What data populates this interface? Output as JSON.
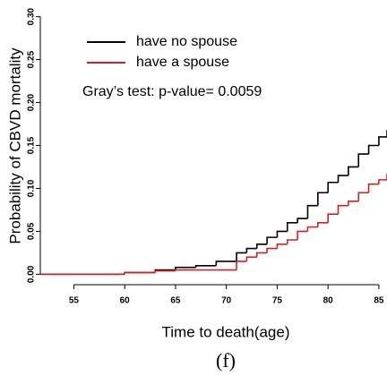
{
  "chart_data": {
    "type": "line",
    "step": "post",
    "ylabel": "Probability of CBVD mortality",
    "xlabel": "Time to death(age)",
    "caption": "(f)",
    "annotation": "Gray’s test: p-value= 0.0059",
    "legend": "top-left",
    "x": [
      51.7,
      60,
      63,
      65,
      67,
      69,
      71,
      72,
      73,
      74,
      75,
      76,
      77,
      78,
      79,
      80,
      81,
      82,
      83,
      84,
      85,
      85.8
    ],
    "series": [
      {
        "name": "have no spouse",
        "color": "#000000",
        "values": [
          0,
          0.002,
          0.005,
          0.008,
          0.01,
          0.015,
          0.025,
          0.03,
          0.035,
          0.043,
          0.05,
          0.06,
          0.065,
          0.08,
          0.095,
          0.107,
          0.115,
          0.125,
          0.14,
          0.15,
          0.16,
          0.168
        ]
      },
      {
        "name": "have a spouse",
        "color": "#d62020",
        "values": [
          0,
          0.002,
          0.004,
          0.005,
          0.005,
          0.005,
          0.015,
          0.02,
          0.025,
          0.03,
          0.035,
          0.04,
          0.05,
          0.055,
          0.06,
          0.07,
          0.08,
          0.085,
          0.095,
          0.105,
          0.11,
          0.117
        ]
      }
    ],
    "xlim": [
      51.7,
      85.8
    ],
    "xticks": [
      55,
      60,
      65,
      70,
      75,
      80,
      85
    ],
    "ylim": [
      -0.009,
      0.309
    ],
    "yticks": [
      {
        "value": 0,
        "label": "0.00"
      },
      {
        "value": 0.05,
        "label": "0.05"
      },
      {
        "value": 0.1,
        "label": "0.10"
      },
      {
        "value": 0.15,
        "label": "0.15"
      },
      {
        "value": 0.2,
        "label": "0.20"
      },
      {
        "value": 0.25,
        "label": "0.25"
      },
      {
        "value": 0.3,
        "label": "0.30"
      }
    ]
  }
}
